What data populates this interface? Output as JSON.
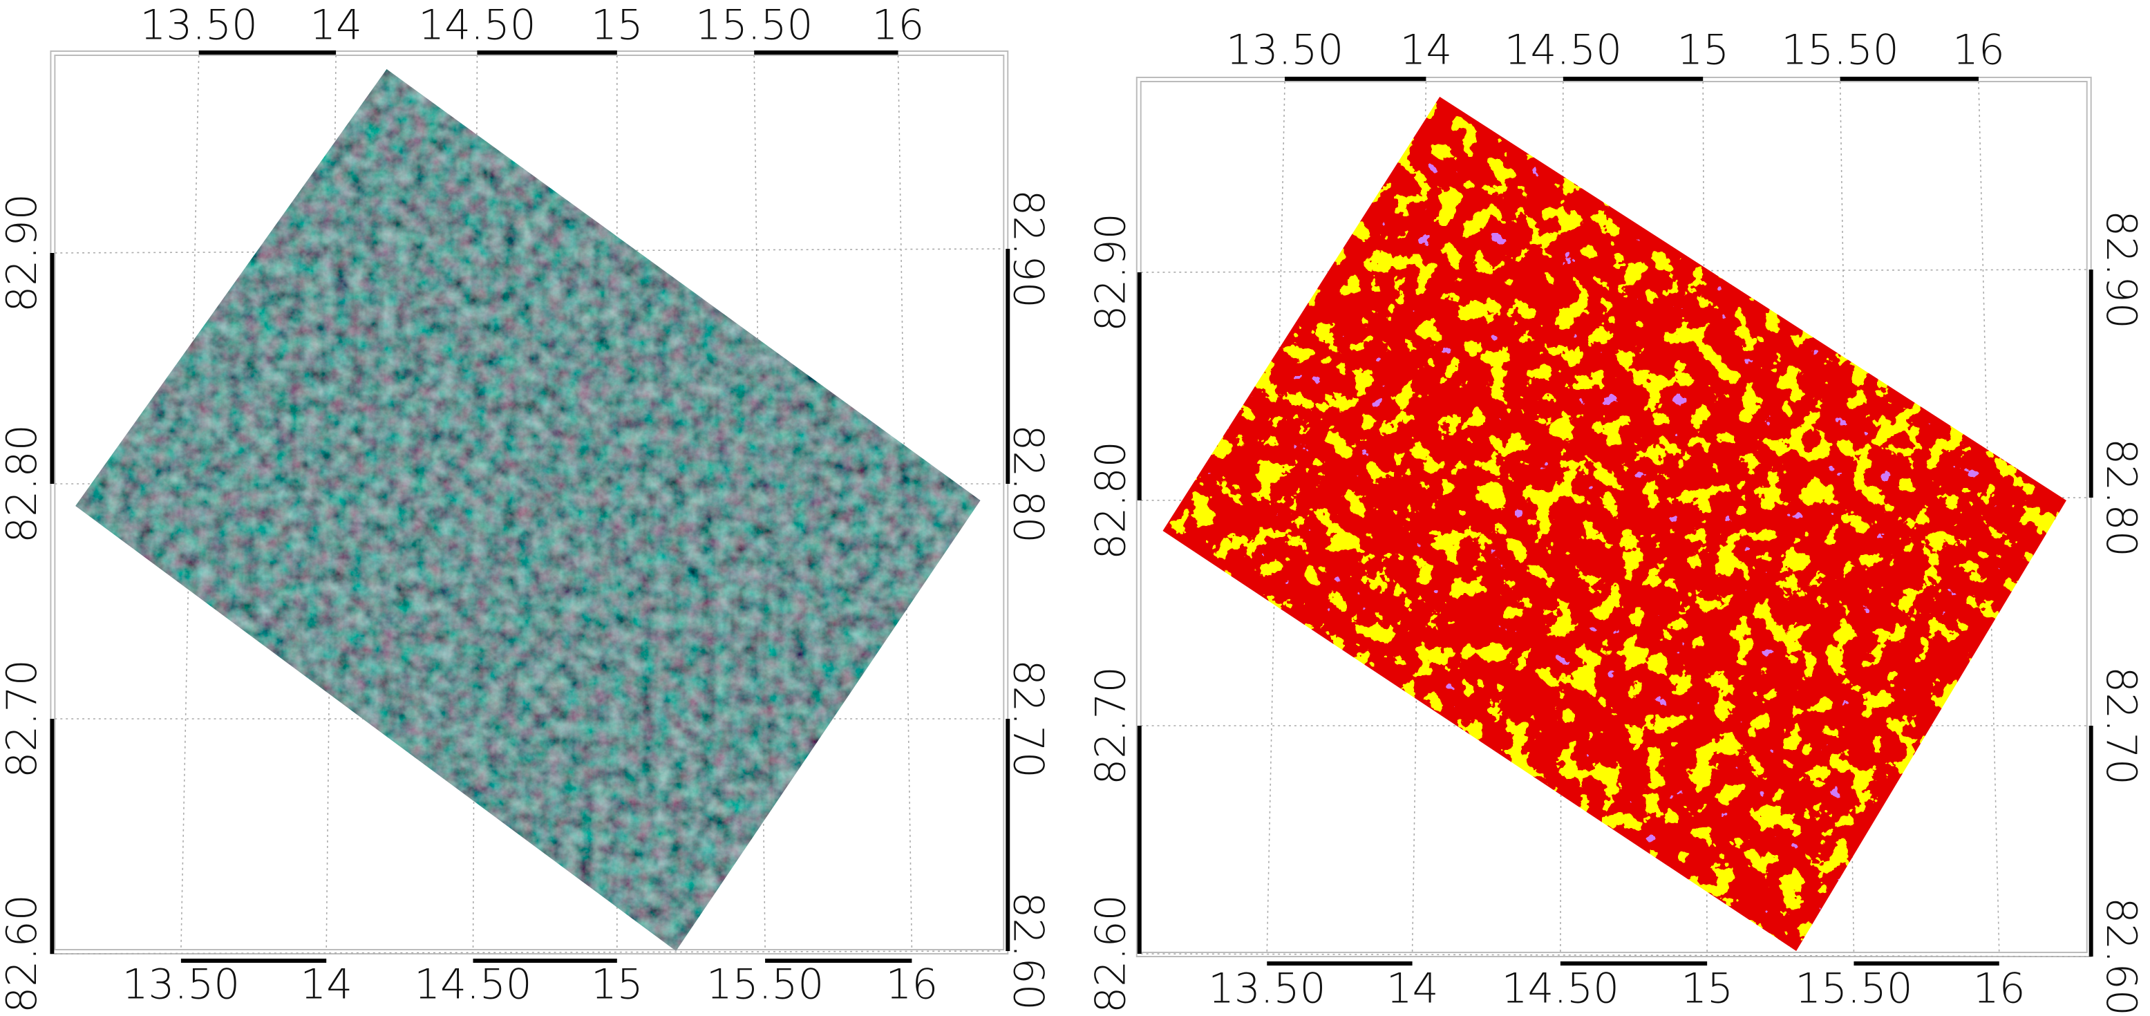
{
  "panels": [
    {
      "top_ticks": [
        "13.50",
        "14",
        "14.50",
        "15",
        "15.50",
        "16"
      ],
      "bottom_ticks": [
        "13.50",
        "14",
        "14.50",
        "15",
        "15.50",
        "16"
      ],
      "left_ticks": [
        "82.90",
        "82.80",
        "82.70",
        "82.60"
      ],
      "right_ticks": [
        "82.90",
        "82.80",
        "82.70",
        "82.60"
      ]
    },
    {
      "top_ticks": [
        "13.50",
        "14",
        "14.50",
        "15",
        "15.50",
        "16"
      ],
      "bottom_ticks": [
        "13.50",
        "14",
        "14.50",
        "15",
        "15.50",
        "16"
      ],
      "left_ticks": [
        "82.90",
        "82.80",
        "82.70",
        "82.60"
      ],
      "right_ticks": [
        "82.90",
        "82.80",
        "82.70",
        "82.60"
      ]
    }
  ]
}
